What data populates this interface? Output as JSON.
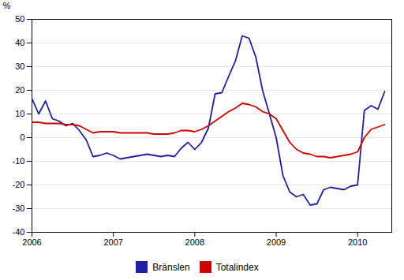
{
  "chart_data": {
    "type": "line",
    "title": "",
    "ylabel": "%",
    "xlim": [
      2006.0,
      2010.42
    ],
    "xticks": [
      2006,
      2007,
      2008,
      2009,
      2010
    ],
    "ylim": [
      -40,
      50
    ],
    "yticks": [
      -40,
      -30,
      -20,
      -10,
      0,
      10,
      20,
      30,
      40,
      50
    ],
    "grid": true,
    "legend": "bottom",
    "x": [
      2006.0,
      2006.083,
      2006.167,
      2006.25,
      2006.333,
      2006.417,
      2006.5,
      2006.583,
      2006.667,
      2006.75,
      2006.833,
      2006.917,
      2007.0,
      2007.083,
      2007.167,
      2007.25,
      2007.333,
      2007.417,
      2007.5,
      2007.583,
      2007.667,
      2007.75,
      2007.833,
      2007.917,
      2008.0,
      2008.083,
      2008.167,
      2008.25,
      2008.333,
      2008.417,
      2008.5,
      2008.583,
      2008.667,
      2008.75,
      2008.833,
      2008.917,
      2009.0,
      2009.083,
      2009.167,
      2009.25,
      2009.333,
      2009.417,
      2009.5,
      2009.583,
      2009.667,
      2009.75,
      2009.833,
      2009.917,
      2010.0,
      2010.083,
      2010.167,
      2010.25,
      2010.333
    ],
    "series": [
      {
        "name": "Bränslen",
        "color": "#1f1f9f",
        "values": [
          16.5,
          10.0,
          15.5,
          8.0,
          7.0,
          5.0,
          6.0,
          3.0,
          -1.0,
          -8.0,
          -7.5,
          -6.5,
          -7.5,
          -9.0,
          -8.5,
          -8.0,
          -7.5,
          -7.0,
          -7.5,
          -8.0,
          -7.5,
          -8.0,
          -4.5,
          -2.0,
          -5.0,
          -2.0,
          4.0,
          18.5,
          19.0,
          26.0,
          32.5,
          43.0,
          42.0,
          34.0,
          20.0,
          10.0,
          0.0,
          -16.0,
          -23.0,
          -25.0,
          -24.0,
          -28.5,
          -28.0,
          -22.0,
          -21.0,
          -21.5,
          -22.0,
          -20.5,
          -20.0,
          11.5,
          13.5,
          12.0,
          19.5
        ]
      },
      {
        "name": "Totalindex",
        "color": "#cc0000",
        "values": [
          6.5,
          6.5,
          6.0,
          6.0,
          6.0,
          5.5,
          5.5,
          5.0,
          3.5,
          2.0,
          2.5,
          2.5,
          2.5,
          2.0,
          2.0,
          2.0,
          2.0,
          2.0,
          1.5,
          1.5,
          1.5,
          2.0,
          3.0,
          3.0,
          2.5,
          3.5,
          5.0,
          7.0,
          9.0,
          11.0,
          12.5,
          14.5,
          14.0,
          13.0,
          11.0,
          10.0,
          8.0,
          3.0,
          -2.0,
          -5.0,
          -6.5,
          -7.0,
          -8.0,
          -8.0,
          -8.5,
          -8.0,
          -7.5,
          -7.0,
          -6.0,
          0.0,
          3.5,
          4.5,
          5.5
        ]
      }
    ]
  }
}
